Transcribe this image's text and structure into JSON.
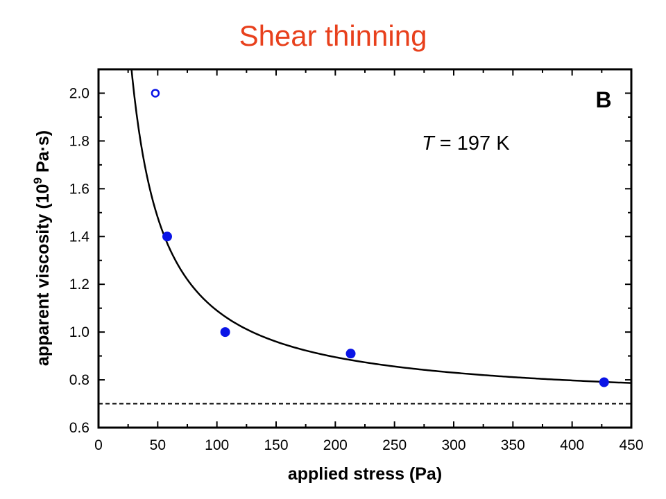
{
  "title": "Shear thinning",
  "title_color": "#e8401c",
  "marker_color": "#0a14e6",
  "chart_data": {
    "type": "scatter",
    "panel_label": "B",
    "annotation": {
      "italic": "T",
      "rest": " = 197 K"
    },
    "xlabel": "applied stress (Pa)",
    "ylabel": {
      "pre": "apparent viscosity (10",
      "sup": "9",
      "post": " Pa·s)"
    },
    "xlim": [
      0,
      450
    ],
    "ylim": [
      0.6,
      2.1
    ],
    "xticks": [
      0,
      50,
      100,
      150,
      200,
      250,
      300,
      350,
      400,
      450
    ],
    "yticks": [
      0.6,
      0.8,
      1.0,
      1.2,
      1.4,
      1.6,
      1.8,
      2.0
    ],
    "xtick_labels": [
      "0",
      "50",
      "100",
      "150",
      "200",
      "250",
      "300",
      "350",
      "400",
      "450"
    ],
    "ytick_labels": [
      "0.6",
      "0.8",
      "1.0",
      "1.2",
      "1.4",
      "1.6",
      "1.8",
      "2.0"
    ],
    "x_minor_step": 25,
    "y_minor_step": 0.1,
    "grid": false,
    "series": [
      {
        "marker": "open-circle",
        "x": [
          48
        ],
        "y": [
          2.0
        ]
      },
      {
        "marker": "filled-circle",
        "x": [
          58,
          107,
          213,
          427
        ],
        "y": [
          1.4,
          1.0,
          0.91,
          0.79
        ]
      }
    ],
    "fit_curve": {
      "style": "solid",
      "model": "y = a + b / x",
      "a": 0.7,
      "b": 39,
      "x_range": [
        25,
        450
      ]
    },
    "baseline": {
      "style": "dashed",
      "y": 0.7
    }
  }
}
